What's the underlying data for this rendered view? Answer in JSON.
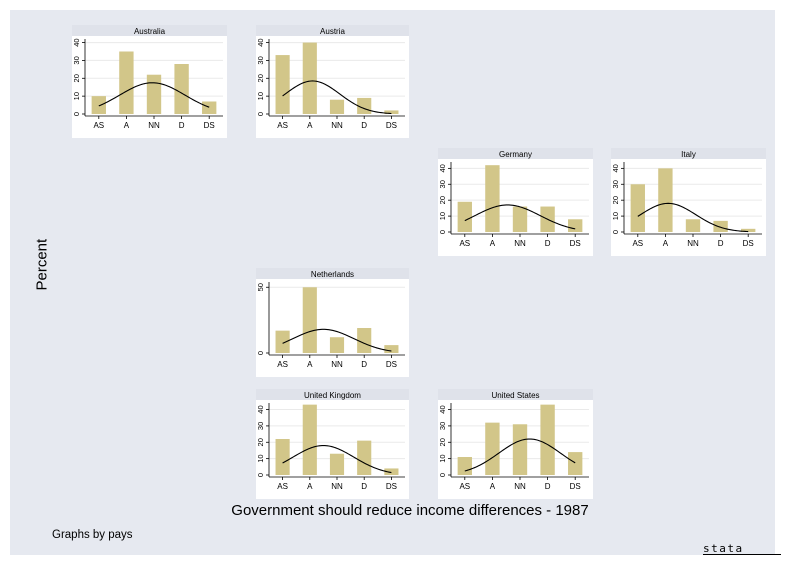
{
  "chart_data": {
    "type": "bar",
    "categories": [
      "AS",
      "A",
      "NN",
      "D",
      "DS"
    ],
    "ylabel": "Percent",
    "xlabel": "Government should reduce income differences - 1987",
    "note": "Graphs by pays",
    "logo": "stata",
    "overlay": "normal density curve",
    "bar_color": "#d2c689",
    "panels": [
      {
        "name": "Australia",
        "values": [
          10,
          35,
          22,
          28,
          7
        ],
        "ylim": [
          0,
          42
        ],
        "yticks": [
          0,
          10,
          20,
          30,
          40
        ],
        "curve_mean": 2.94,
        "curve_sd": 1.18,
        "curve_peak": 17.5
      },
      {
        "name": "Austria",
        "values": [
          33,
          40,
          8,
          9,
          2
        ],
        "ylim": [
          0,
          42
        ],
        "yticks": [
          0,
          10,
          20,
          30,
          40
        ],
        "curve_mean": 2.1,
        "curve_sd": 1.0,
        "curve_peak": 18.5
      },
      {
        "name": "Germany",
        "values": [
          19,
          42,
          16,
          16,
          8
        ],
        "ylim": [
          0,
          44
        ],
        "yticks": [
          0,
          10,
          20,
          30,
          40
        ],
        "curve_mean": 2.55,
        "curve_sd": 1.18,
        "curve_peak": 17.0
      },
      {
        "name": "Italy",
        "values": [
          30,
          40,
          8,
          7,
          2
        ],
        "ylim": [
          0,
          44
        ],
        "yticks": [
          0,
          10,
          20,
          30,
          40
        ],
        "curve_mean": 2.1,
        "curve_sd": 1.0,
        "curve_peak": 18.0
      },
      {
        "name": "Netherlands",
        "values": [
          17,
          50,
          12,
          19,
          6
        ],
        "ylim": [
          0,
          54
        ],
        "yticks": [
          0,
          50
        ],
        "curve_mean": 2.5,
        "curve_sd": 1.12,
        "curve_peak": 18.0
      },
      {
        "name": "United Kingdom",
        "values": [
          22,
          43,
          13,
          21,
          4
        ],
        "ylim": [
          0,
          44
        ],
        "yticks": [
          0,
          10,
          20,
          30,
          40
        ],
        "curve_mean": 2.5,
        "curve_sd": 1.12,
        "curve_peak": 18.0
      },
      {
        "name": "United States",
        "values": [
          11,
          32,
          31,
          43,
          14
        ],
        "ylim": [
          0,
          44
        ],
        "yticks": [
          0,
          10,
          20,
          30,
          40
        ],
        "curve_mean": 3.35,
        "curve_sd": 1.12,
        "curve_peak": 22.0
      }
    ]
  }
}
